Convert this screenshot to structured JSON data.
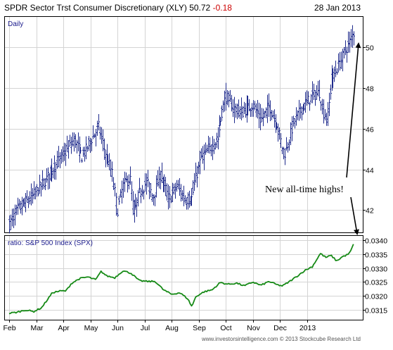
{
  "header": {
    "title": "SPDR Sector Trst Consumer Discretionary (XLY)",
    "last": "50.72",
    "change": "-0.18",
    "date": "28 Jan 2013"
  },
  "colors": {
    "price": "#1e2a8c",
    "ratio": "#168a16",
    "change": "#cc0000",
    "label": "#1a1a8c"
  },
  "chart_data": [
    {
      "type": "ohlc",
      "panel_label": "Daily",
      "ylim": [
        40.9,
        51.5
      ],
      "yticks": [
        42,
        44,
        46,
        48,
        50
      ],
      "x_labels": [
        "Feb",
        "Mar",
        "Apr",
        "May",
        "Jun",
        "Jul",
        "Aug",
        "Sep",
        "Oct",
        "Nov",
        "Dec",
        "2013"
      ],
      "anchors": [
        {
          "m": 0.0,
          "v": 41.3
        },
        {
          "m": 0.3,
          "v": 42.0
        },
        {
          "m": 0.8,
          "v": 42.6
        },
        {
          "m": 1.3,
          "v": 43.4
        },
        {
          "m": 1.7,
          "v": 44.2
        },
        {
          "m": 2.1,
          "v": 44.9
        },
        {
          "m": 2.4,
          "v": 45.5
        },
        {
          "m": 2.7,
          "v": 44.6
        },
        {
          "m": 3.0,
          "v": 45.4
        },
        {
          "m": 3.3,
          "v": 46.1
        },
        {
          "m": 3.5,
          "v": 45.0
        },
        {
          "m": 3.8,
          "v": 43.8
        },
        {
          "m": 4.0,
          "v": 42.0
        },
        {
          "m": 4.2,
          "v": 43.2
        },
        {
          "m": 4.45,
          "v": 43.6
        },
        {
          "m": 4.6,
          "v": 41.8
        },
        {
          "m": 4.8,
          "v": 42.8
        },
        {
          "m": 5.1,
          "v": 43.4
        },
        {
          "m": 5.3,
          "v": 42.6
        },
        {
          "m": 5.6,
          "v": 43.8
        },
        {
          "m": 5.9,
          "v": 42.5
        },
        {
          "m": 6.2,
          "v": 43.2
        },
        {
          "m": 6.5,
          "v": 42.5
        },
        {
          "m": 6.75,
          "v": 42.6
        },
        {
          "m": 6.9,
          "v": 43.6
        },
        {
          "m": 7.1,
          "v": 44.6
        },
        {
          "m": 7.4,
          "v": 45.0
        },
        {
          "m": 7.7,
          "v": 45.5
        },
        {
          "m": 7.85,
          "v": 46.8
        },
        {
          "m": 8.0,
          "v": 47.6
        },
        {
          "m": 8.3,
          "v": 47.0
        },
        {
          "m": 8.6,
          "v": 46.8
        },
        {
          "m": 9.0,
          "v": 47.2
        },
        {
          "m": 9.3,
          "v": 46.4
        },
        {
          "m": 9.6,
          "v": 47.1
        },
        {
          "m": 9.9,
          "v": 46.2
        },
        {
          "m": 10.1,
          "v": 45.0
        },
        {
          "m": 10.2,
          "v": 44.8
        },
        {
          "m": 10.5,
          "v": 46.3
        },
        {
          "m": 10.8,
          "v": 47.0
        },
        {
          "m": 11.2,
          "v": 47.6
        },
        {
          "m": 11.45,
          "v": 47.8
        },
        {
          "m": 11.6,
          "v": 46.8
        },
        {
          "m": 11.75,
          "v": 46.5
        },
        {
          "m": 11.9,
          "v": 48.4
        },
        {
          "m": 12.2,
          "v": 49.2
        },
        {
          "m": 12.4,
          "v": 49.8
        },
        {
          "m": 12.55,
          "v": 50.2
        },
        {
          "m": 12.72,
          "v": 50.72
        }
      ]
    },
    {
      "type": "line",
      "panel_label": "ratio: S&P 500 Index (SPX)",
      "ylim": [
        0.03115,
        0.03415
      ],
      "yticks": [
        "0.0315",
        "0.0320",
        "0.0325",
        "0.0330",
        "0.0335",
        "0.0340"
      ],
      "anchors": [
        {
          "m": 0.0,
          "v": 0.03138
        },
        {
          "m": 0.3,
          "v": 0.03142
        },
        {
          "m": 0.6,
          "v": 0.0315
        },
        {
          "m": 0.9,
          "v": 0.03144
        },
        {
          "m": 1.2,
          "v": 0.03158
        },
        {
          "m": 1.6,
          "v": 0.03212
        },
        {
          "m": 1.9,
          "v": 0.03218
        },
        {
          "m": 2.1,
          "v": 0.03218
        },
        {
          "m": 2.3,
          "v": 0.03245
        },
        {
          "m": 2.6,
          "v": 0.03262
        },
        {
          "m": 2.9,
          "v": 0.03268
        },
        {
          "m": 3.2,
          "v": 0.03258
        },
        {
          "m": 3.4,
          "v": 0.03288
        },
        {
          "m": 3.6,
          "v": 0.03272
        },
        {
          "m": 3.9,
          "v": 0.03265
        },
        {
          "m": 4.2,
          "v": 0.0329
        },
        {
          "m": 4.5,
          "v": 0.03282
        },
        {
          "m": 4.8,
          "v": 0.03255
        },
        {
          "m": 5.1,
          "v": 0.03252
        },
        {
          "m": 5.4,
          "v": 0.03252
        },
        {
          "m": 5.7,
          "v": 0.03222
        },
        {
          "m": 6.0,
          "v": 0.03206
        },
        {
          "m": 6.3,
          "v": 0.03212
        },
        {
          "m": 6.6,
          "v": 0.0319
        },
        {
          "m": 6.75,
          "v": 0.03162
        },
        {
          "m": 6.9,
          "v": 0.03198
        },
        {
          "m": 7.2,
          "v": 0.03215
        },
        {
          "m": 7.5,
          "v": 0.03222
        },
        {
          "m": 7.8,
          "v": 0.03248
        },
        {
          "m": 8.1,
          "v": 0.03242
        },
        {
          "m": 8.4,
          "v": 0.03246
        },
        {
          "m": 8.7,
          "v": 0.03236
        },
        {
          "m": 9.0,
          "v": 0.0325
        },
        {
          "m": 9.3,
          "v": 0.03238
        },
        {
          "m": 9.6,
          "v": 0.03252
        },
        {
          "m": 9.9,
          "v": 0.0324
        },
        {
          "m": 10.1,
          "v": 0.03236
        },
        {
          "m": 10.3,
          "v": 0.03248
        },
        {
          "m": 10.6,
          "v": 0.03268
        },
        {
          "m": 10.9,
          "v": 0.0329
        },
        {
          "m": 11.2,
          "v": 0.03305
        },
        {
          "m": 11.5,
          "v": 0.03352
        },
        {
          "m": 11.7,
          "v": 0.03338
        },
        {
          "m": 11.9,
          "v": 0.03345
        },
        {
          "m": 12.1,
          "v": 0.03325
        },
        {
          "m": 12.3,
          "v": 0.0334
        },
        {
          "m": 12.5,
          "v": 0.03348
        },
        {
          "m": 12.6,
          "v": 0.03356
        },
        {
          "m": 12.72,
          "v": 0.03385
        }
      ]
    }
  ],
  "annotation": {
    "text": "New all-time highs!"
  },
  "footer": {
    "credit": "www.investorsintelligence.com  © 2013 Stockcube Research Ltd"
  }
}
